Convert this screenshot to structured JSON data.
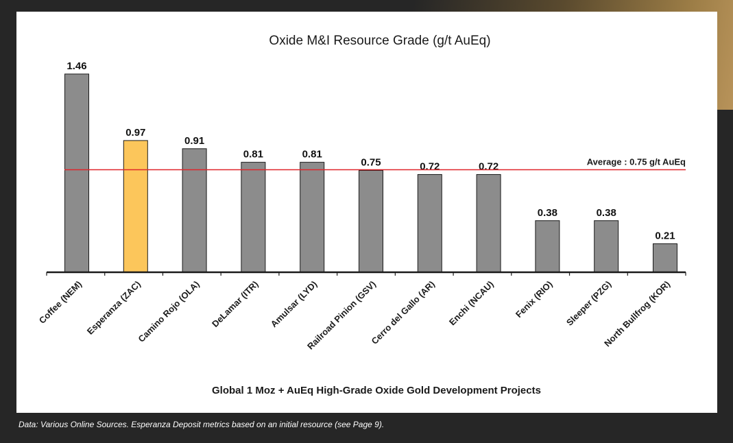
{
  "chart_data": {
    "type": "bar",
    "title": "Oxide M&I Resource Grade (g/t  AuEq)",
    "xlabel": "Global 1 Moz + AuEq High-Grade Oxide Gold Development Projects",
    "ylabel": "",
    "ylim": [
      0,
      1.5
    ],
    "categories": [
      "Coffee (NEM)",
      "Esperanza (ZAC)",
      "Camino Rojo (OLA)",
      "DeLamar (ITR)",
      "Amulsar (LYD)",
      "Railroad Pinion (GSV)",
      "Cerro del Gallo (AR)",
      "Enchi (NCAU)",
      "Fenix (RIO)",
      "Sleeper (PZG)",
      "North Bullfrog (KOR)"
    ],
    "values": [
      1.46,
      0.97,
      0.91,
      0.81,
      0.81,
      0.75,
      0.72,
      0.72,
      0.38,
      0.38,
      0.21
    ],
    "value_labels": [
      "1.46",
      "0.97",
      "0.91",
      "0.81",
      "0.81",
      "0.75",
      "0.72",
      "0.72",
      "0.38",
      "0.38",
      "0.21"
    ],
    "highlight_index": 1,
    "average": {
      "value": 0.75,
      "label": "Average : 0.75 g/t  AuEq"
    },
    "colors": {
      "bar": "#8c8c8c",
      "highlight": "#fcc65b",
      "average_line": "#e0262b",
      "bar_stroke": "#1a1a1a"
    },
    "grid": false
  },
  "footnote": "Data: Various Online Sources. Esperanza Deposit metrics based on an initial resource (see Page 9)."
}
